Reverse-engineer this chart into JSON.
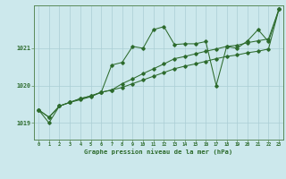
{
  "title": "Graphe pression niveau de la mer (hPa)",
  "background_color": "#cce8ec",
  "line_color": "#2d6b2d",
  "grid_color": "#aacdd4",
  "x_ticks": [
    0,
    1,
    2,
    3,
    4,
    5,
    6,
    7,
    8,
    9,
    10,
    11,
    12,
    13,
    14,
    15,
    16,
    17,
    18,
    19,
    20,
    21,
    22,
    23
  ],
  "y_ticks": [
    1019,
    1020,
    1021
  ],
  "ylim": [
    1018.55,
    1022.15
  ],
  "xlim": [
    -0.4,
    23.4
  ],
  "series1": [
    1019.35,
    1019.0,
    1019.45,
    1019.55,
    1019.62,
    1019.7,
    1019.82,
    1020.55,
    1020.62,
    1021.05,
    1021.0,
    1021.5,
    1021.58,
    1021.1,
    1021.12,
    1021.12,
    1021.18,
    1020.0,
    1021.05,
    1021.0,
    1021.2,
    1021.5,
    1021.18,
    1022.05
  ],
  "series2": [
    1019.35,
    1019.15,
    1019.45,
    1019.55,
    1019.65,
    1019.72,
    1019.82,
    1019.88,
    1019.95,
    1020.05,
    1020.15,
    1020.25,
    1020.35,
    1020.45,
    1020.52,
    1020.58,
    1020.65,
    1020.72,
    1020.78,
    1020.82,
    1020.88,
    1020.92,
    1020.98,
    1022.05
  ],
  "series3": [
    1019.35,
    1019.15,
    1019.45,
    1019.55,
    1019.65,
    1019.72,
    1019.82,
    1019.88,
    1020.05,
    1020.18,
    1020.32,
    1020.45,
    1020.58,
    1020.72,
    1020.78,
    1020.85,
    1020.92,
    1020.98,
    1021.05,
    1021.08,
    1021.15,
    1021.2,
    1021.25,
    1022.05
  ]
}
